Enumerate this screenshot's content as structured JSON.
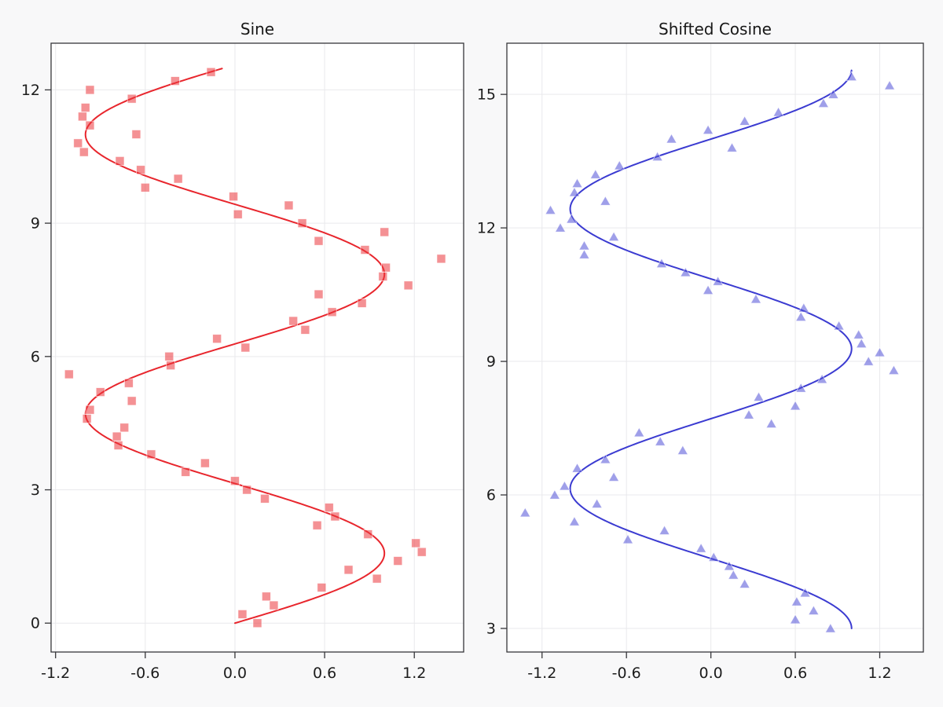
{
  "figure": {
    "background": "#f8f8f9",
    "plot_background": "#ffffff",
    "grid_color": "#e9e9ec",
    "frame_color": "#36363a",
    "tick_color": "#36363a",
    "tick_label_color": "#1c1c1c",
    "title_color": "#171717",
    "title_font_size": 20,
    "tick_font_size": 19
  },
  "chart_data": [
    {
      "type": "scatter",
      "title": "Sine",
      "marker_shape": "square",
      "line_color": "#e8262d",
      "marker_fill": "rgba(235,55,60,0.55)",
      "marker_stroke": "rgba(255,255,255,0.7)",
      "curve": {
        "fn": "sin",
        "t_min": 0,
        "t_max": 12.5,
        "shift": 0
      },
      "xlim": [
        -1.23,
        1.53
      ],
      "ylim": [
        -0.65,
        13.05
      ],
      "xticks": [
        -1.2,
        -0.6,
        0.0,
        0.6,
        1.2
      ],
      "xtick_labels": [
        "-1.2",
        "-0.6",
        "0.0",
        "0.6",
        "1.2"
      ],
      "yticks": [
        0,
        3,
        6,
        9,
        12
      ],
      "ytick_labels": [
        "0",
        "3",
        "6",
        "9",
        "12"
      ],
      "points": [
        [
          -0.16,
          12.4
        ],
        [
          -0.4,
          12.2
        ],
        [
          -0.97,
          12.0
        ],
        [
          -0.69,
          11.8
        ],
        [
          -1.0,
          11.6
        ],
        [
          -1.02,
          11.4
        ],
        [
          -0.97,
          11.2
        ],
        [
          -0.66,
          11.0
        ],
        [
          -1.05,
          10.8
        ],
        [
          -1.01,
          10.6
        ],
        [
          -0.77,
          10.4
        ],
        [
          -0.63,
          10.2
        ],
        [
          -0.38,
          10.0
        ],
        [
          -0.6,
          9.8
        ],
        [
          -0.01,
          9.6
        ],
        [
          0.36,
          9.4
        ],
        [
          0.02,
          9.2
        ],
        [
          0.45,
          9.0
        ],
        [
          1.0,
          8.8
        ],
        [
          0.56,
          8.6
        ],
        [
          0.87,
          8.4
        ],
        [
          1.38,
          8.2
        ],
        [
          1.01,
          8.0
        ],
        [
          0.99,
          7.8
        ],
        [
          1.16,
          7.6
        ],
        [
          0.56,
          7.4
        ],
        [
          0.85,
          7.2
        ],
        [
          0.65,
          7.0
        ],
        [
          0.39,
          6.8
        ],
        [
          0.47,
          6.6
        ],
        [
          -0.12,
          6.4
        ],
        [
          0.07,
          6.2
        ],
        [
          -0.44,
          6.0
        ],
        [
          -0.43,
          5.8
        ],
        [
          -1.11,
          5.6
        ],
        [
          -0.71,
          5.4
        ],
        [
          -0.9,
          5.2
        ],
        [
          -0.69,
          5.0
        ],
        [
          -0.97,
          4.8
        ],
        [
          -0.99,
          4.6
        ],
        [
          -0.74,
          4.4
        ],
        [
          -0.79,
          4.2
        ],
        [
          -0.78,
          4.0
        ],
        [
          -0.56,
          3.8
        ],
        [
          -0.2,
          3.6
        ],
        [
          -0.33,
          3.4
        ],
        [
          0.0,
          3.2
        ],
        [
          0.08,
          3.0
        ],
        [
          0.2,
          2.8
        ],
        [
          0.63,
          2.6
        ],
        [
          0.67,
          2.4
        ],
        [
          0.55,
          2.2
        ],
        [
          0.89,
          2.0
        ],
        [
          1.21,
          1.8
        ],
        [
          1.25,
          1.6
        ],
        [
          1.09,
          1.4
        ],
        [
          0.76,
          1.2
        ],
        [
          0.95,
          1.0
        ],
        [
          0.58,
          0.8
        ],
        [
          0.21,
          0.6
        ],
        [
          0.26,
          0.4
        ],
        [
          0.05,
          0.2
        ],
        [
          0.15,
          0.0
        ]
      ]
    },
    {
      "type": "scatter",
      "title": "Shifted Cosine",
      "marker_shape": "triangle",
      "line_color": "#3b3bd1",
      "marker_fill": "rgba(80,80,215,0.55)",
      "marker_stroke": "rgba(255,255,255,0.7)",
      "curve": {
        "fn": "cos",
        "t_min": 3,
        "t_max": 15.55,
        "shift": 3
      },
      "xlim": [
        -1.45,
        1.51
      ],
      "ylim": [
        2.47,
        16.15
      ],
      "xticks": [
        -1.2,
        -0.6,
        0.0,
        0.6,
        1.2
      ],
      "xtick_labels": [
        "-1.2",
        "-0.6",
        "0.0",
        "0.6",
        "1.2"
      ],
      "yticks": [
        3,
        6,
        9,
        12,
        15
      ],
      "ytick_labels": [
        "3",
        "6",
        "9",
        "12",
        "15"
      ],
      "points": [
        [
          1.0,
          15.4
        ],
        [
          1.27,
          15.2
        ],
        [
          0.87,
          15.0
        ],
        [
          0.8,
          14.8
        ],
        [
          0.48,
          14.6
        ],
        [
          0.24,
          14.4
        ],
        [
          -0.02,
          14.2
        ],
        [
          -0.28,
          14.0
        ],
        [
          0.15,
          13.8
        ],
        [
          -0.38,
          13.6
        ],
        [
          -0.65,
          13.4
        ],
        [
          -0.82,
          13.2
        ],
        [
          -0.95,
          13.0
        ],
        [
          -0.97,
          12.8
        ],
        [
          -0.75,
          12.6
        ],
        [
          -1.14,
          12.4
        ],
        [
          -0.99,
          12.2
        ],
        [
          -1.07,
          12.0
        ],
        [
          -0.69,
          11.8
        ],
        [
          -0.9,
          11.6
        ],
        [
          -0.9,
          11.4
        ],
        [
          -0.35,
          11.2
        ],
        [
          -0.18,
          11.0
        ],
        [
          0.05,
          10.8
        ],
        [
          -0.02,
          10.6
        ],
        [
          0.32,
          10.4
        ],
        [
          0.66,
          10.2
        ],
        [
          0.64,
          10.0
        ],
        [
          0.91,
          9.8
        ],
        [
          1.05,
          9.6
        ],
        [
          1.07,
          9.4
        ],
        [
          1.2,
          9.2
        ],
        [
          1.12,
          9.0
        ],
        [
          1.3,
          8.8
        ],
        [
          0.79,
          8.6
        ],
        [
          0.64,
          8.4
        ],
        [
          0.34,
          8.2
        ],
        [
          0.6,
          8.0
        ],
        [
          0.27,
          7.8
        ],
        [
          0.43,
          7.6
        ],
        [
          -0.51,
          7.4
        ],
        [
          -0.36,
          7.2
        ],
        [
          -0.2,
          7.0
        ],
        [
          -0.75,
          6.8
        ],
        [
          -0.95,
          6.6
        ],
        [
          -0.69,
          6.4
        ],
        [
          -1.04,
          6.2
        ],
        [
          -1.11,
          6.0
        ],
        [
          -0.81,
          5.8
        ],
        [
          -1.32,
          5.6
        ],
        [
          -0.97,
          5.4
        ],
        [
          -0.33,
          5.2
        ],
        [
          -0.59,
          5.0
        ],
        [
          -0.07,
          4.8
        ],
        [
          0.02,
          4.6
        ],
        [
          0.13,
          4.4
        ],
        [
          0.16,
          4.2
        ],
        [
          0.24,
          4.0
        ],
        [
          0.67,
          3.8
        ],
        [
          0.61,
          3.6
        ],
        [
          0.73,
          3.4
        ],
        [
          0.6,
          3.2
        ],
        [
          0.85,
          3.0
        ]
      ]
    }
  ]
}
